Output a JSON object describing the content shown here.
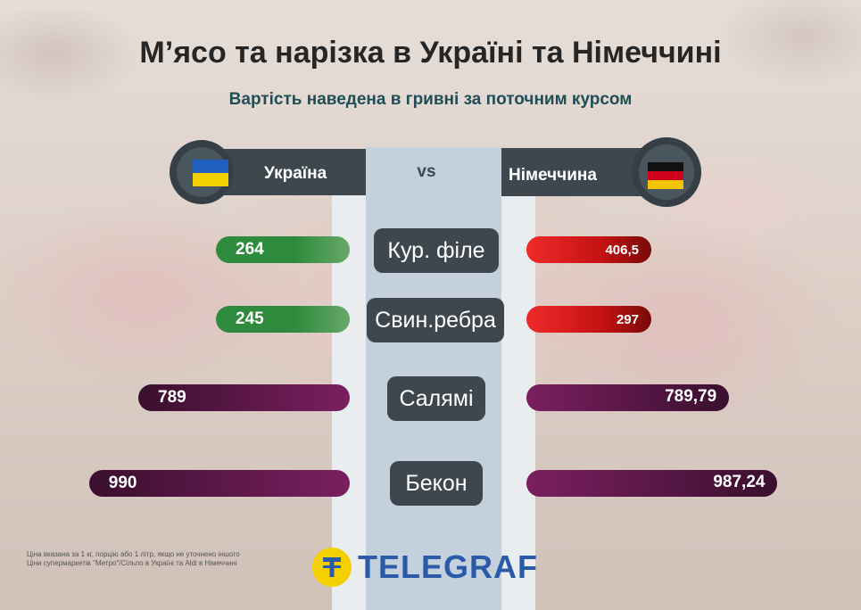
{
  "title": "М’ясо та нарізка в Україні та Німеччині",
  "subtitle": "Вартість наведена в гривні за поточним курсом",
  "header": {
    "left_country": "Україна",
    "vs": "vs",
    "right_country": "Німеччина",
    "left_flag": "ukraine-flag-icon",
    "right_flag": "germany-flag-icon"
  },
  "chart_data": {
    "type": "bar",
    "title": "М’ясо та нарізка в Україні та Німеччині",
    "subtitle": "Вартість наведена в гривні за поточним курсом",
    "categories": [
      "Кур. філе",
      "Свин.ребра",
      "Салямі",
      "Бекон"
    ],
    "series": [
      {
        "name": "Україна",
        "values": [
          264,
          245,
          789,
          990
        ],
        "labels": [
          "264",
          "245",
          "789",
          "990"
        ]
      },
      {
        "name": "Німеччина",
        "values": [
          406.5,
          297,
          789.79,
          987.24
        ],
        "labels": [
          "406,5",
          "297",
          "789,79",
          "987,24"
        ]
      }
    ],
    "colors": {
      "ukraine_cheap": "#2e8b3d",
      "germany_expensive": "#d61a1a",
      "equal": "#7a1f60"
    }
  },
  "footnotes": [
    "Ціна вказана за 1 кг, порцію або 1 літр, якщо не уточнено іншого",
    "Ціни супермаркетів \"Метро\"/Сільпо в Україні та Aldi в Німеччині"
  ],
  "logo": {
    "text": "TELEGRAF",
    "icon": "telegraf-logo-icon"
  }
}
